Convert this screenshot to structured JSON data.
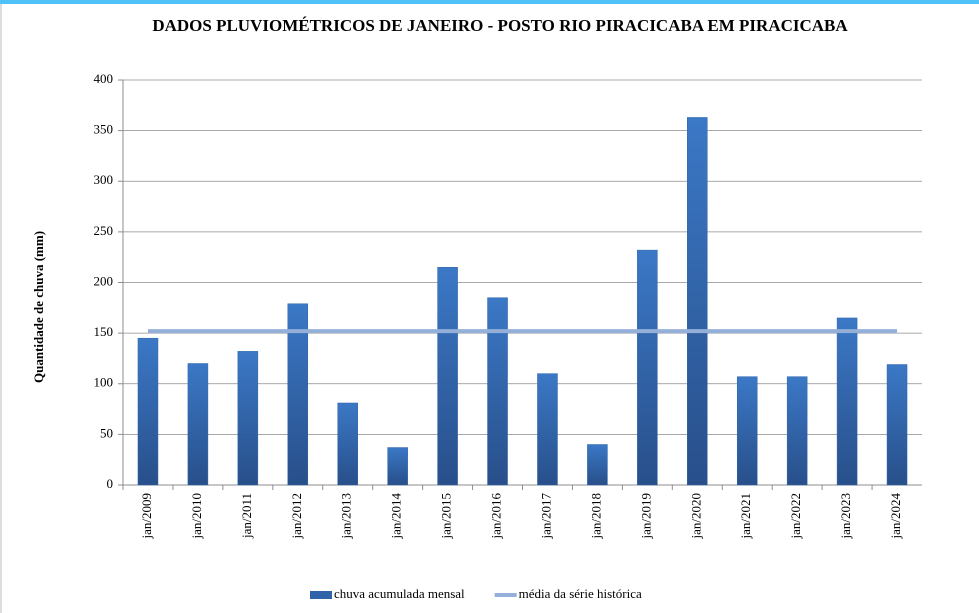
{
  "chart_data": {
    "type": "bar",
    "title": "DADOS PLUVIOMÉTRICOS DE JANEIRO - POSTO RIO PIRACICABA EM PIRACICABA",
    "y_label": "Quantidade de chuva (mm)",
    "categories": [
      "jan/2009",
      "jan/2010",
      "jan/2011",
      "jan/2012",
      "jan/2013",
      "jan/2014",
      "jan/2015",
      "jan/2016",
      "jan/2017",
      "jan/2018",
      "jan/2019",
      "jan/2020",
      "jan/2021",
      "jan/2022",
      "jan/2023",
      "jan/2024"
    ],
    "series": [
      {
        "name": "chuva acumulada mensal",
        "type": "bar",
        "color": "#2f64a8",
        "values": [
          145,
          120,
          132,
          179,
          81,
          37,
          215,
          185,
          110,
          40,
          232,
          363,
          107,
          107,
          165,
          119
        ]
      },
      {
        "name": "média da série histórica",
        "type": "line",
        "color": "#94b0d8",
        "values": [
          152,
          152,
          152,
          152,
          152,
          152,
          152,
          152,
          152,
          152,
          152,
          152,
          152,
          152,
          152,
          152
        ]
      }
    ],
    "ylim": [
      0,
      400
    ],
    "yticks": [
      0,
      50,
      100,
      150,
      200,
      250,
      300,
      350,
      400
    ],
    "grid": true,
    "legend": "bottom"
  }
}
